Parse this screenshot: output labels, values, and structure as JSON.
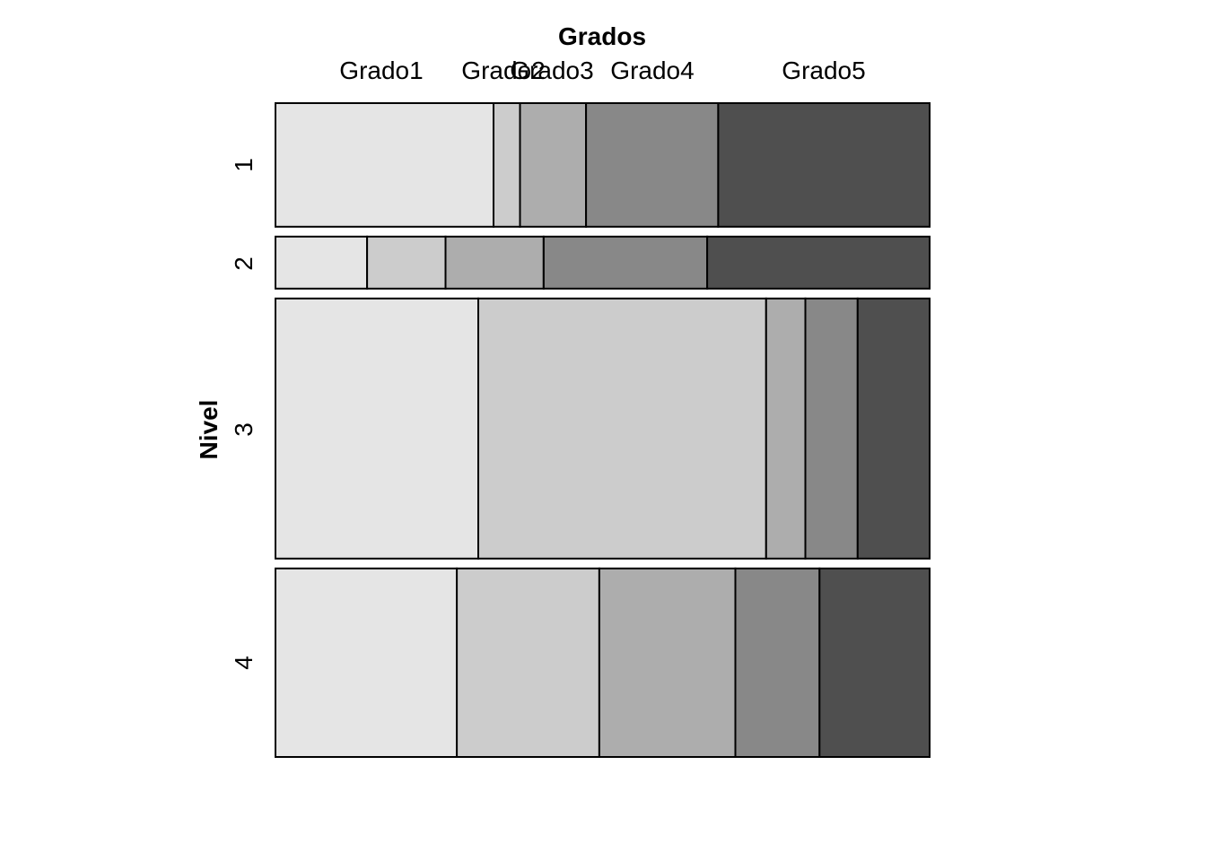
{
  "chart_data": {
    "type": "mosaic",
    "xlabel": "Grados",
    "ylabel": "Nivel",
    "column_categories": [
      "Grado1",
      "Grado2",
      "Grado3",
      "Grado4",
      "Grado5"
    ],
    "row_categories": [
      "1",
      "2",
      "3",
      "4"
    ],
    "row_proportions": [
      0.19,
      0.08,
      0.4,
      0.29
    ],
    "cell_proportions": [
      [
        0.33,
        0.04,
        0.1,
        0.2,
        0.32
      ],
      [
        0.14,
        0.12,
        0.15,
        0.25,
        0.34
      ],
      [
        0.31,
        0.44,
        0.06,
        0.08,
        0.11
      ],
      [
        0.28,
        0.22,
        0.21,
        0.13,
        0.17
      ]
    ],
    "column_colors": [
      "#e5e5e5",
      "#cccccc",
      "#adadad",
      "#888888",
      "#4f4f4f"
    ],
    "border_color": "#000000"
  }
}
